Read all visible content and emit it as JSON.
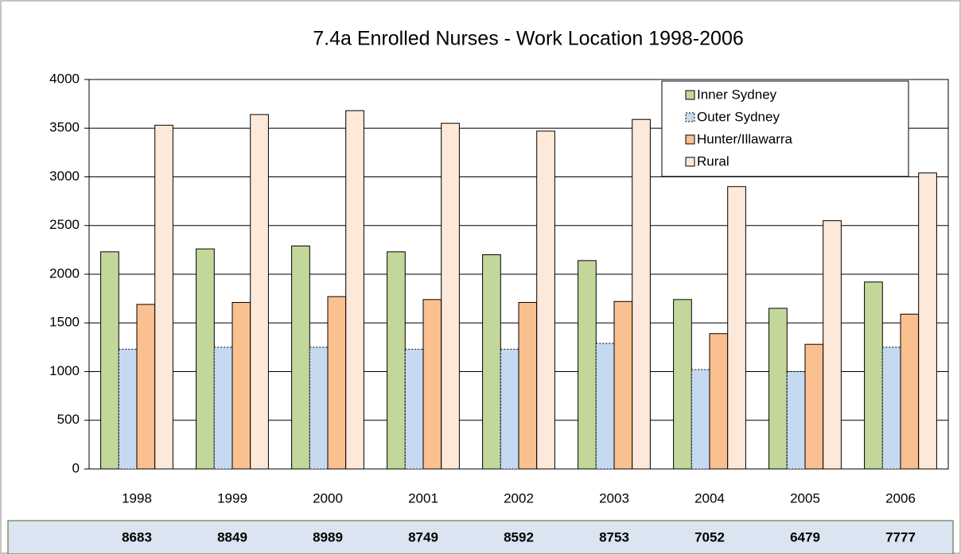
{
  "chart_data": {
    "type": "bar",
    "title": "7.4a Enrolled Nurses  - Work Location 1998-2006",
    "categories": [
      "1998",
      "1999",
      "2000",
      "2001",
      "2002",
      "2003",
      "2004",
      "2005",
      "2006"
    ],
    "series": [
      {
        "name": "Inner Sydney",
        "color": "#c4d79b",
        "values": [
          2230,
          2260,
          2290,
          2230,
          2200,
          2140,
          1740,
          1650,
          1920
        ]
      },
      {
        "name": "Outer Sydney",
        "color": "#c5d9f1",
        "values": [
          1230,
          1250,
          1250,
          1230,
          1230,
          1290,
          1020,
          1000,
          1250
        ]
      },
      {
        "name": "Hunter/Illawarra",
        "color": "#fac090",
        "values": [
          1690,
          1710,
          1770,
          1740,
          1710,
          1720,
          1390,
          1280,
          1590
        ]
      },
      {
        "name": "Rural",
        "color": "#fde9d9",
        "values": [
          3530,
          3640,
          3680,
          3550,
          3470,
          3590,
          2900,
          2550,
          3040
        ]
      }
    ],
    "totals": [
      8683,
      8849,
      8989,
      8749,
      8592,
      8753,
      7052,
      6479,
      7777
    ],
    "ylim": [
      0,
      4000
    ],
    "yticks": [
      0,
      500,
      1000,
      1500,
      2000,
      2500,
      3000,
      3500,
      4000
    ],
    "grid": true,
    "legend": "upper right"
  }
}
